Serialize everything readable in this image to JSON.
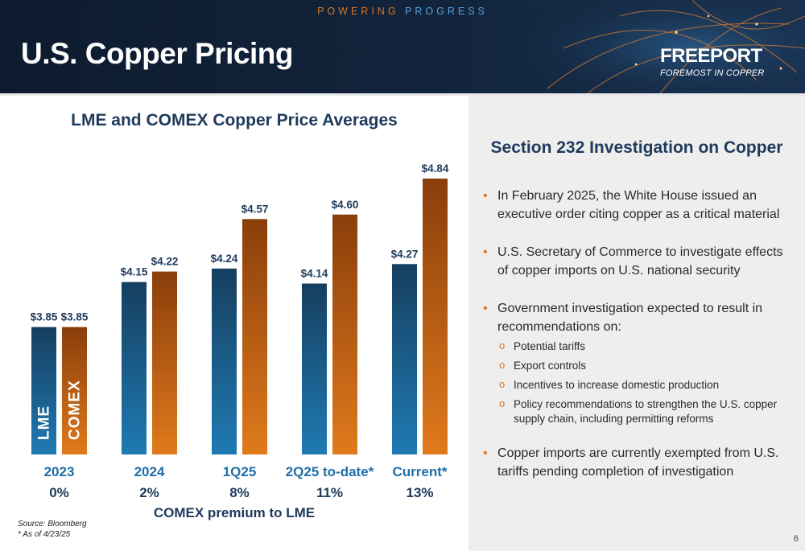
{
  "header": {
    "tagline_part1": "POWERING",
    "tagline_part2": "PROGRESS",
    "title": "U.S. Copper Pricing",
    "logo_name": "FREEPORT",
    "logo_sub": "FOREMOST IN COPPER"
  },
  "colors": {
    "lme": "#1a5f8c",
    "comex": "#c2640f",
    "title_text": "#1e3a5c",
    "accent": "#d9782a"
  },
  "chart_data": {
    "type": "bar",
    "title": "LME and COMEX Copper Price Averages",
    "categories": [
      "2023",
      "2024",
      "1Q25",
      "2Q25 to-date*",
      "Current*"
    ],
    "premiums": [
      "0%",
      "2%",
      "8%",
      "11%",
      "13%"
    ],
    "premium_label": "COMEX premium to LME",
    "series": [
      {
        "name": "LME",
        "values": [
          3.85,
          4.15,
          4.24,
          4.14,
          4.27
        ],
        "labels": [
          "$3.85",
          "$4.15",
          "$4.24",
          "$4.14",
          "$4.27"
        ]
      },
      {
        "name": "COMEX",
        "values": [
          3.85,
          4.22,
          4.57,
          4.6,
          4.84
        ],
        "labels": [
          "$3.85",
          "$4.22",
          "$4.57",
          "$4.60",
          "$4.84"
        ]
      }
    ],
    "legend": "in-bar"
  },
  "source": {
    "line1": "Source: Bloomberg",
    "line2": "* As of 4/23/25"
  },
  "panel": {
    "title": "Section 232 Investigation on Copper",
    "bullet1": "In February 2025, the White House issued an executive order citing copper as a critical material",
    "bullet2": "U.S. Secretary of Commerce to investigate effects of copper imports on U.S. national security",
    "bullet3": "Government investigation expected to result in recommendations on:",
    "sub1": "Potential tariffs",
    "sub2": "Export controls",
    "sub3": "Incentives to increase domestic production",
    "sub4": "Policy recommendations to strengthen the U.S. copper supply chain, including permitting reforms",
    "bullet4": "Copper imports are currently exempted from U.S. tariffs pending completion of investigation"
  },
  "page_number": "6"
}
